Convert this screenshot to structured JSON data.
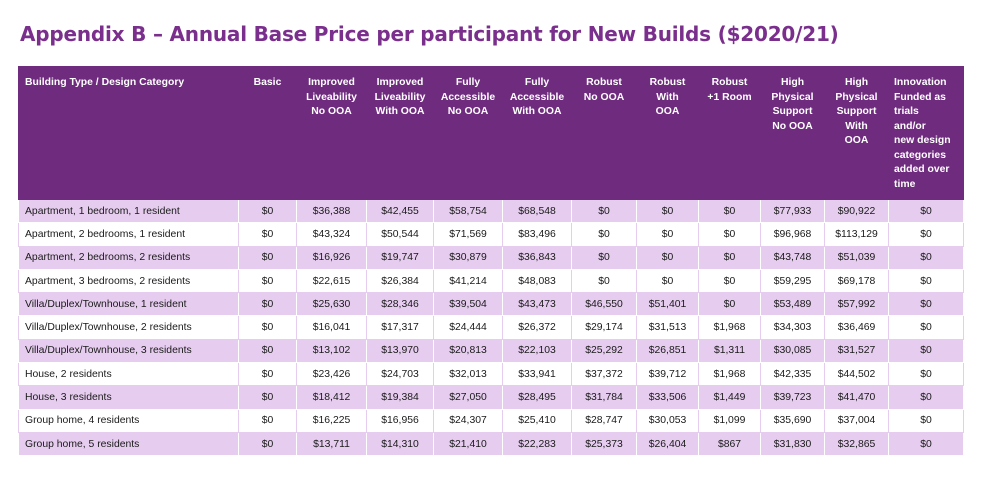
{
  "title": "Appendix B – Annual Base Price per participant for New Builds ($2020/21)",
  "headers": [
    [
      "Building Type / Design Category"
    ],
    [
      "Basic"
    ],
    [
      "Improved",
      "Liveability",
      "No OOA"
    ],
    [
      "Improved",
      "Liveability",
      "With OOA"
    ],
    [
      "Fully",
      "Accessible",
      "No OOA"
    ],
    [
      "Fully",
      "Accessible",
      "With OOA"
    ],
    [
      "Robust",
      "No OOA"
    ],
    [
      "Robust",
      "With",
      "OOA"
    ],
    [
      "Robust",
      "+1 Room"
    ],
    [
      "High",
      "Physical",
      "Support",
      "No OOA"
    ],
    [
      "High",
      "Physical",
      "Support",
      "With",
      "OOA"
    ],
    [
      "Innovation",
      "Funded as",
      "trials",
      "and/or",
      "new design",
      "categories",
      "added over",
      "time"
    ]
  ],
  "rows": [
    [
      "Apartment, 1 bedroom, 1 resident",
      "$0",
      "$36,388",
      "$42,455",
      "$58,754",
      "$68,548",
      "$0",
      "$0",
      "$0",
      "$77,933",
      "$90,922",
      "$0"
    ],
    [
      "Apartment, 2 bedrooms, 1 resident",
      "$0",
      "$43,324",
      "$50,544",
      "$71,569",
      "$83,496",
      "$0",
      "$0",
      "$0",
      "$96,968",
      "$113,129",
      "$0"
    ],
    [
      "Apartment, 2 bedrooms, 2 residents",
      "$0",
      "$16,926",
      "$19,747",
      "$30,879",
      "$36,843",
      "$0",
      "$0",
      "$0",
      "$43,748",
      "$51,039",
      "$0"
    ],
    [
      "Apartment, 3 bedrooms, 2 residents",
      "$0",
      "$22,615",
      "$26,384",
      "$41,214",
      "$48,083",
      "$0",
      "$0",
      "$0",
      "$59,295",
      "$69,178",
      "$0"
    ],
    [
      "Villa/Duplex/Townhouse, 1 resident",
      "$0",
      "$25,630",
      "$28,346",
      "$39,504",
      "$43,473",
      "$46,550",
      "$51,401",
      "$0",
      "$53,489",
      "$57,992",
      "$0"
    ],
    [
      "Villa/Duplex/Townhouse, 2 residents",
      "$0",
      "$16,041",
      "$17,317",
      "$24,444",
      "$26,372",
      "$29,174",
      "$31,513",
      "$1,968",
      "$34,303",
      "$36,469",
      "$0"
    ],
    [
      "Villa/Duplex/Townhouse, 3 residents",
      "$0",
      "$13,102",
      "$13,970",
      "$20,813",
      "$22,103",
      "$25,292",
      "$26,851",
      "$1,311",
      "$30,085",
      "$31,527",
      "$0"
    ],
    [
      "House, 2 residents",
      "$0",
      "$23,426",
      "$24,703",
      "$32,013",
      "$33,941",
      "$37,372",
      "$39,712",
      "$1,968",
      "$42,335",
      "$44,502",
      "$0"
    ],
    [
      "House, 3 residents",
      "$0",
      "$18,412",
      "$19,384",
      "$27,050",
      "$28,495",
      "$31,784",
      "$33,506",
      "$1,449",
      "$39,723",
      "$41,470",
      "$0"
    ],
    [
      "Group home, 4 residents",
      "$0",
      "$16,225",
      "$16,956",
      "$24,307",
      "$25,410",
      "$28,747",
      "$30,053",
      "$1,099",
      "$35,690",
      "$37,004",
      "$0"
    ],
    [
      "Group home, 5 residents",
      "$0",
      "$13,711",
      "$14,310",
      "$21,410",
      "$22,283",
      "$25,373",
      "$26,404",
      "$867",
      "$31,830",
      "$32,865",
      "$0"
    ]
  ]
}
